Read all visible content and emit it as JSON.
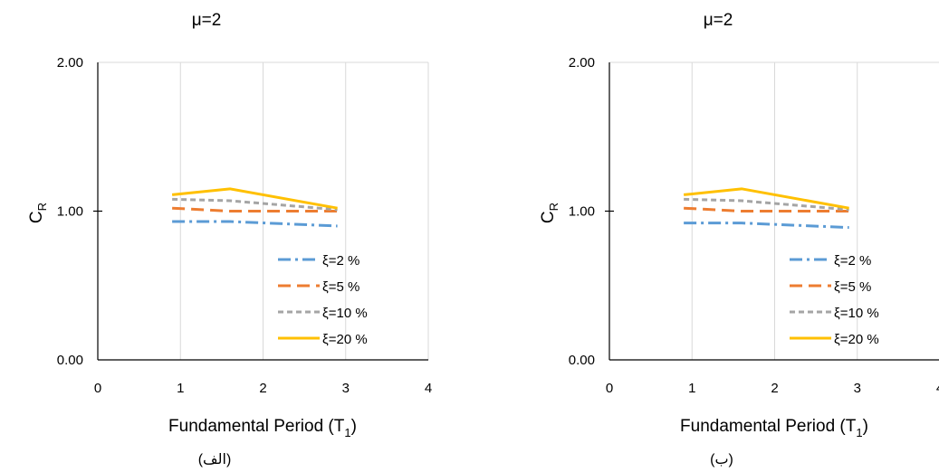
{
  "captions": [
    "(الف)",
    "(ب)"
  ],
  "colors": {
    "s2": "#5B9BD5",
    "s5": "#ED7D31",
    "s10": "#A5A5A5",
    "s20": "#FFC000",
    "grid": "#D9D9D9",
    "axis": "#000000"
  },
  "chart_data": [
    {
      "type": "line",
      "title": "μ=2",
      "xlabel": "Fundamental Period (T",
      "xlabel_subscript": "1",
      "xlabel_suffix": ")",
      "ylabel": "C",
      "ylabel_subscript": "R",
      "xlim": [
        0,
        4
      ],
      "ylim": [
        0,
        2
      ],
      "xticks": [
        "0",
        "1",
        "2",
        "3",
        "4"
      ],
      "yticks": [
        "0.00",
        "1.00",
        "2.00"
      ],
      "grid": "vertical",
      "legend_position": "bottom-right",
      "x": [
        0.9,
        1.6,
        2.9
      ],
      "series": [
        {
          "name": "ξ=2 %",
          "values": [
            0.93,
            0.93,
            0.9
          ],
          "dash": "dashdot",
          "color_key": "s2"
        },
        {
          "name": "ξ=5 %",
          "values": [
            1.02,
            1.0,
            1.0
          ],
          "dash": "dash",
          "color_key": "s5"
        },
        {
          "name": "ξ=10 %",
          "values": [
            1.08,
            1.07,
            1.01
          ],
          "dash": "shortdash",
          "color_key": "s10"
        },
        {
          "name": "ξ=20 %",
          "values": [
            1.11,
            1.15,
            1.02
          ],
          "dash": "solid",
          "color_key": "s20"
        }
      ]
    },
    {
      "type": "line",
      "title": "μ=2",
      "xlabel": "Fundamental Period (T",
      "xlabel_subscript": "1",
      "xlabel_suffix": ")",
      "ylabel": "C",
      "ylabel_subscript": "R",
      "xlim": [
        0,
        4
      ],
      "ylim": [
        0,
        2
      ],
      "xticks": [
        "0",
        "1",
        "2",
        "3",
        "4"
      ],
      "yticks": [
        "0.00",
        "1.00",
        "2.00"
      ],
      "grid": "vertical",
      "legend_position": "bottom-right",
      "x": [
        0.9,
        1.6,
        2.9
      ],
      "series": [
        {
          "name": "ξ=2 %",
          "values": [
            0.92,
            0.92,
            0.89
          ],
          "dash": "dashdot",
          "color_key": "s2"
        },
        {
          "name": "ξ=5 %",
          "values": [
            1.02,
            1.0,
            1.0
          ],
          "dash": "dash",
          "color_key": "s5"
        },
        {
          "name": "ξ=10 %",
          "values": [
            1.08,
            1.07,
            1.01
          ],
          "dash": "shortdash",
          "color_key": "s10"
        },
        {
          "name": "ξ=20 %",
          "values": [
            1.11,
            1.15,
            1.02
          ],
          "dash": "solid",
          "color_key": "s20"
        }
      ]
    }
  ]
}
